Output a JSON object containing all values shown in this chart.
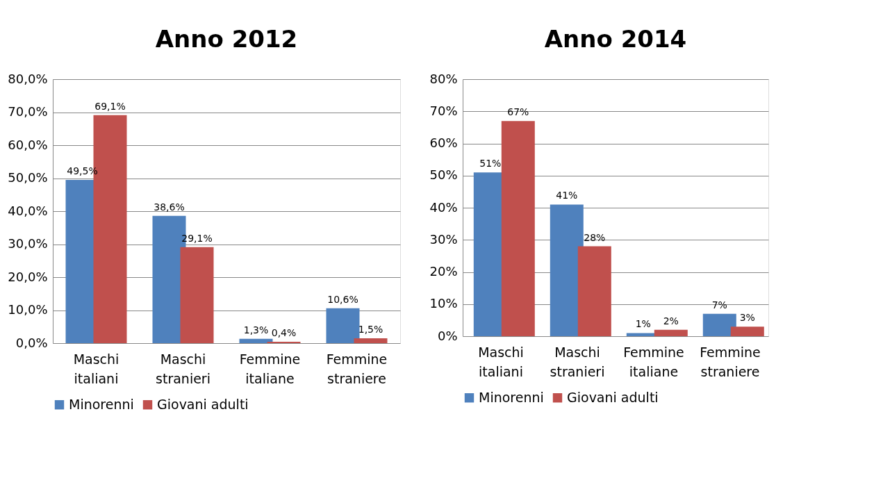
{
  "chart_data": [
    {
      "type": "bar",
      "title": "Anno 2012",
      "categories": [
        "Maschi italiani",
        "Maschi stranieri",
        "Femmine italiane",
        "Femmine straniere"
      ],
      "series": [
        {
          "name": "Minorenni",
          "color": "#4f81bd",
          "values": [
            49.5,
            38.6,
            1.3,
            10.6
          ],
          "value_labels": [
            "49,5%",
            "38,6%",
            "1,3%",
            "10,6%"
          ]
        },
        {
          "name": "Giovani adulti",
          "color": "#c0504d",
          "values": [
            69.1,
            29.1,
            0.4,
            1.5
          ],
          "value_labels": [
            "69,1%",
            "29,1%",
            "0,4%",
            "1,5%"
          ]
        }
      ],
      "ylim": [
        0,
        80
      ],
      "yticks": [
        {
          "value": 0,
          "label": "0,0%"
        },
        {
          "value": 10,
          "label": "10,0%"
        },
        {
          "value": 20,
          "label": "20,0%"
        },
        {
          "value": 30,
          "label": "30,0%"
        },
        {
          "value": 40,
          "label": "40,0%"
        },
        {
          "value": 50,
          "label": "50,0%"
        },
        {
          "value": 60,
          "label": "60,0%"
        },
        {
          "value": 70,
          "label": "70,0%"
        },
        {
          "value": 80,
          "label": "80,0%"
        }
      ],
      "grid": "y",
      "legend": "bottom"
    },
    {
      "type": "bar",
      "title": "Anno 2014",
      "categories": [
        "Maschi italiani",
        "Maschi stranieri",
        "Femmine italiane",
        "Femmine straniere"
      ],
      "series": [
        {
          "name": "Minorenni",
          "color": "#4f81bd",
          "values": [
            51,
            41,
            1,
            7
          ],
          "value_labels": [
            "51%",
            "41%",
            "1%",
            "7%"
          ]
        },
        {
          "name": "Giovani adulti",
          "color": "#c0504d",
          "values": [
            67,
            28,
            2,
            3
          ],
          "value_labels": [
            "67%",
            "28%",
            "2%",
            "3%"
          ]
        }
      ],
      "ylim": [
        0,
        80
      ],
      "yticks": [
        {
          "value": 0,
          "label": "0%"
        },
        {
          "value": 10,
          "label": "10%"
        },
        {
          "value": 20,
          "label": "20%"
        },
        {
          "value": 30,
          "label": "30%"
        },
        {
          "value": 40,
          "label": "40%"
        },
        {
          "value": 50,
          "label": "50%"
        },
        {
          "value": 60,
          "label": "60%"
        },
        {
          "value": 70,
          "label": "70%"
        },
        {
          "value": 80,
          "label": "80%"
        }
      ],
      "grid": "y",
      "legend": "bottom"
    }
  ]
}
